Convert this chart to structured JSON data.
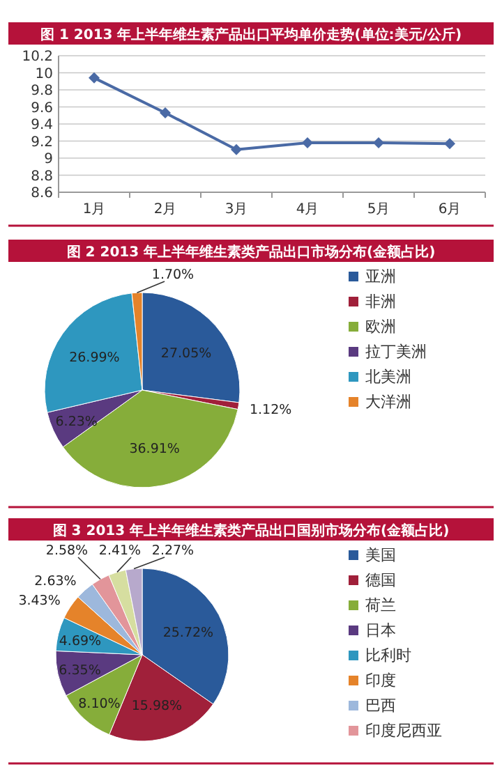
{
  "chart_data": [
    {
      "type": "line",
      "title": "图 1  2013 年上半年维生素产品出口平均单价走势(单位:美元/公斤)",
      "categories": [
        "1月",
        "2月",
        "3月",
        "4月",
        "5月",
        "6月"
      ],
      "series": [
        {
          "color": "#4a6aa5",
          "values": [
            9.94,
            9.53,
            9.1,
            9.18,
            9.18,
            9.17
          ]
        }
      ],
      "ylim": [
        8.6,
        10.2
      ],
      "yticks": [
        {
          "value": 8.6,
          "label": "8.6"
        },
        {
          "value": 8.8,
          "label": "8.8"
        },
        9,
        {
          "value": 9.2,
          "label": "9.2"
        },
        {
          "value": 9.4,
          "label": "9.4"
        },
        {
          "value": 9.6,
          "label": "9.6"
        },
        {
          "value": 9.8,
          "label": "9.8"
        },
        10,
        {
          "value": 10.2,
          "label": "10.2"
        }
      ],
      "grid": "y",
      "marker": "diamond",
      "line_style": "solid"
    },
    {
      "type": "pie",
      "title": "图 2  2013 年上半年维生素类产品出口市场分布(金额占比)",
      "categories": [
        "亚洲",
        "非洲",
        "欧洲",
        "拉丁美洲",
        "北美洲",
        "大洋洲"
      ],
      "values": [
        27.05,
        1.12,
        36.91,
        6.23,
        26.99,
        1.7
      ],
      "colors": [
        "#2a5a9a",
        "#a0203a",
        "#86ad3a",
        "#5a3a80",
        "#2e97bf",
        "#e5832a"
      ],
      "value_labels": [
        "27.05%",
        "1.12%",
        "36.91%",
        "6.23%",
        "26.99%",
        "1.70%"
      ],
      "legend": "right"
    },
    {
      "type": "pie",
      "title": "图 3  2013 年上半年维生素类产品出口国别市场分布(金额占比)",
      "categories": [
        "美国",
        "德国",
        "荷兰",
        "日本",
        "比利时",
        "印度",
        "巴西",
        "印度尼西亚",
        null,
        null
      ],
      "values": [
        25.72,
        15.98,
        8.1,
        6.35,
        4.69,
        3.43,
        2.63,
        2.58,
        2.41,
        2.27
      ],
      "colors": [
        "#2a5a9a",
        "#a0203a",
        "#86ad3a",
        "#5a3a80",
        "#2e97bf",
        "#e5832a",
        "#9db8dc",
        "#e2959a",
        "#d6dea0",
        "#b7a9cc"
      ],
      "value_labels": [
        "25.72%",
        "15.98%",
        "8.10%",
        "6.35%",
        "4.69%",
        "3.43%",
        "2.63%",
        "2.58%",
        "2.41%",
        "2.27%"
      ],
      "legend": "right"
    }
  ]
}
